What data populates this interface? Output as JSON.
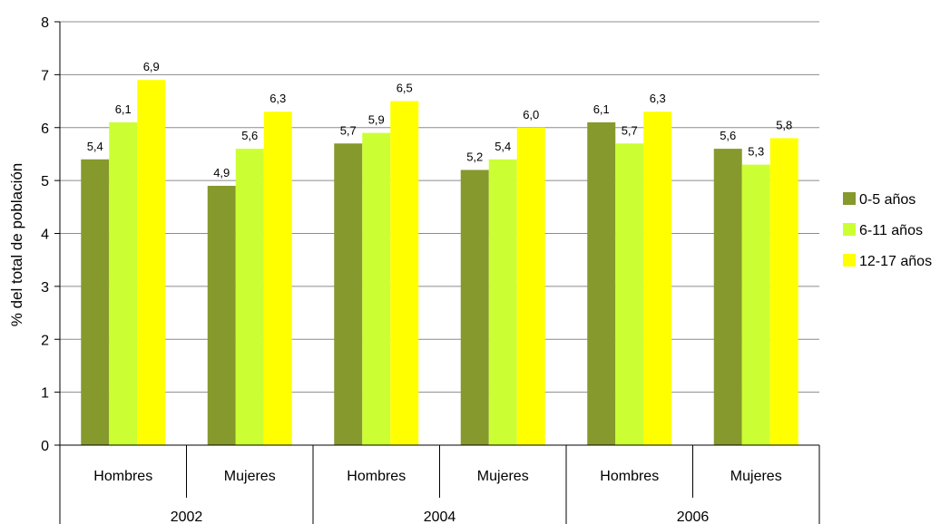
{
  "chart_data": {
    "type": "bar",
    "ylabel": "% del total de población",
    "ylim": [
      0,
      8
    ],
    "yticks": [
      0,
      1,
      2,
      3,
      4,
      5,
      6,
      7,
      8
    ],
    "grid": true,
    "legend_position": "right",
    "groups": [
      {
        "label": "2002",
        "categories": [
          "Hombres",
          "Mujeres"
        ]
      },
      {
        "label": "2004",
        "categories": [
          "Hombres",
          "Mujeres"
        ]
      },
      {
        "label": "2006",
        "categories": [
          "Hombres",
          "Mujeres"
        ]
      }
    ],
    "categories": [
      "Hombres",
      "Mujeres",
      "Hombres",
      "Mujeres",
      "Hombres",
      "Mujeres"
    ],
    "series": [
      {
        "name": "0-5 años",
        "color": "#86992C",
        "values": [
          5.4,
          4.9,
          5.7,
          5.2,
          6.1,
          5.6
        ],
        "labels": [
          "5,4",
          "4,9",
          "5,7",
          "5,2",
          "6,1",
          "5,6"
        ]
      },
      {
        "name": "6-11 años",
        "color": "#CCFF33",
        "values": [
          6.1,
          5.6,
          5.9,
          5.4,
          5.7,
          5.3
        ],
        "labels": [
          "6,1",
          "5,6",
          "5,9",
          "5,4",
          "5,7",
          "5,3"
        ]
      },
      {
        "name": "12-17 años",
        "color": "#FFFF00",
        "values": [
          6.9,
          6.3,
          6.5,
          6.0,
          6.3,
          5.8
        ],
        "labels": [
          "6,9",
          "6,3",
          "6,5",
          "6,0",
          "6,3",
          "5,8"
        ]
      }
    ]
  }
}
